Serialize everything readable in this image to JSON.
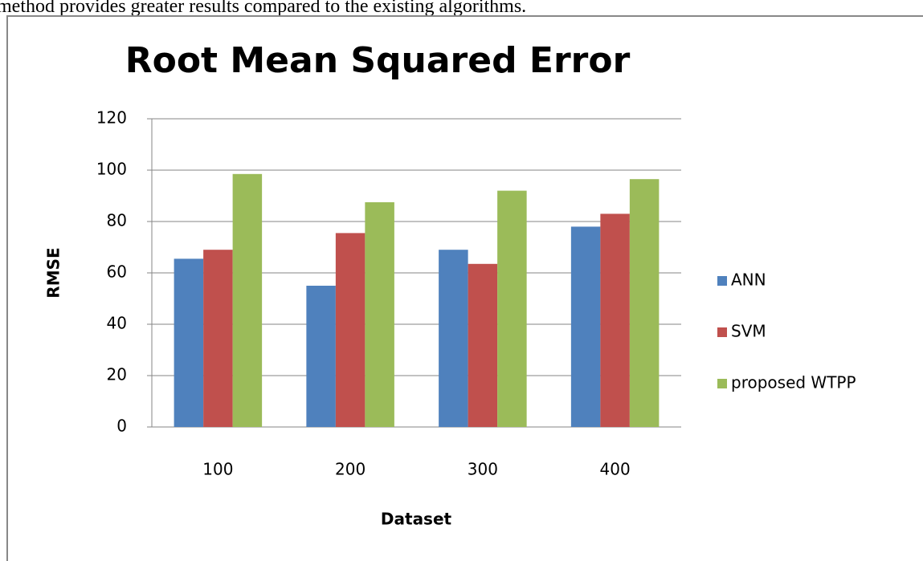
{
  "caption": "method provides greater results compared to the existing algorithms.",
  "chart_data": {
    "type": "bar",
    "title": "Root Mean Squared Error",
    "x_label": "Dataset",
    "y_label": "RMSE",
    "categories": [
      "100",
      "200",
      "300",
      "400"
    ],
    "series": [
      {
        "name": "ANN",
        "color": "#4f81bd",
        "values": [
          65.5,
          55,
          69,
          78
        ]
      },
      {
        "name": "SVM",
        "color": "#c0504d",
        "values": [
          69,
          75.5,
          63.5,
          83
        ]
      },
      {
        "name": "proposed WTPP",
        "color": "#9bbb59",
        "values": [
          98.5,
          87.5,
          92,
          96.5
        ]
      }
    ],
    "ylim": [
      0,
      120
    ],
    "yticks": [
      0,
      20,
      40,
      60,
      80,
      100,
      120
    ],
    "grid": true,
    "legend": "right"
  }
}
